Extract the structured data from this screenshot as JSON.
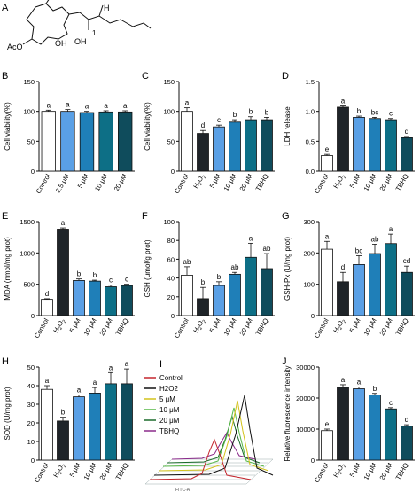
{
  "colors": {
    "control": "#ffffff",
    "h2o2": "#1f2429",
    "um5": "#5aa0e6",
    "um10": "#1f7fb8",
    "um20": "#0d6f86",
    "tbhq": "#0f4c5c",
    "inset_control": "#c4262e",
    "inset_h2o2": "#111111",
    "inset_5": "#d3c21b",
    "inset_10": "#57b847",
    "inset_20": "#1a6b2a",
    "inset_tbhq": "#8a2a8a"
  },
  "structure": {
    "label": "A",
    "acetoxy": "AcO",
    "oh1": "OH",
    "oh2": "OH",
    "h": "H",
    "number": "1"
  },
  "chart_data": [
    {
      "id": "B",
      "label": "B",
      "type": "bar",
      "ylabel": "Cell viability(%)",
      "ylim": [
        0,
        150
      ],
      "yticks": [
        0,
        50,
        100,
        150
      ],
      "categories": [
        "Control",
        "2.5 μM",
        "5 μM",
        "10 μM",
        "20 μM"
      ],
      "values": [
        100,
        100,
        98,
        99,
        99
      ],
      "errors": [
        2,
        3,
        2,
        2,
        2
      ],
      "letters": [
        "a",
        "a",
        "a",
        "a",
        "a"
      ],
      "colors": [
        "#ffffff",
        "#5aa0e6",
        "#1f7fb8",
        "#0d6f86",
        "#0f4c5c"
      ]
    },
    {
      "id": "C",
      "label": "C",
      "type": "bar",
      "ylabel": "Cell viability(%)",
      "ylim": [
        0,
        150
      ],
      "yticks": [
        0,
        50,
        100,
        150
      ],
      "categories": [
        "Control",
        "H2O2",
        "5 μM",
        "10 μM",
        "20 μM",
        "TBHQ"
      ],
      "values": [
        100,
        63,
        74,
        82,
        86,
        86
      ],
      "errors": [
        6,
        5,
        3,
        4,
        5,
        4
      ],
      "letters": [
        "a",
        "d",
        "c",
        "b",
        "b",
        "b"
      ],
      "colors": [
        "#ffffff",
        "#1f2429",
        "#5aa0e6",
        "#1f7fb8",
        "#0d6f86",
        "#0f4c5c"
      ]
    },
    {
      "id": "D",
      "label": "D",
      "type": "bar",
      "ylabel": "LDH release",
      "ylim": [
        0,
        1.5
      ],
      "yticks": [
        0.0,
        0.5,
        1.0,
        1.5
      ],
      "tickDecimals": 1,
      "categories": [
        "Control",
        "H2O2",
        "5 μM",
        "10 μM",
        "20 μM",
        "TBHQ"
      ],
      "values": [
        0.26,
        1.07,
        0.9,
        0.88,
        0.86,
        0.56
      ],
      "errors": [
        0.02,
        0.02,
        0.02,
        0.02,
        0.02,
        0.02
      ],
      "letters": [
        "e",
        "a",
        "b",
        "bc",
        "c",
        "d"
      ],
      "colors": [
        "#ffffff",
        "#1f2429",
        "#5aa0e6",
        "#1f7fb8",
        "#0d6f86",
        "#0f4c5c"
      ]
    },
    {
      "id": "E",
      "label": "E",
      "type": "bar",
      "ylabel": "MDA (nmol/mg prot)",
      "ylim": [
        0,
        1500
      ],
      "yticks": [
        0,
        500,
        1000,
        1500
      ],
      "categories": [
        "Control",
        "H2O2",
        "5 μM",
        "10 μM",
        "20 μM",
        "TBHQ"
      ],
      "values": [
        260,
        1380,
        560,
        550,
        460,
        480
      ],
      "errors": [
        10,
        20,
        25,
        15,
        25,
        20
      ],
      "letters": [
        "d",
        "a",
        "b",
        "b",
        "c",
        "c"
      ],
      "colors": [
        "#ffffff",
        "#1f2429",
        "#5aa0e6",
        "#1f7fb8",
        "#0d6f86",
        "#0f4c5c"
      ]
    },
    {
      "id": "F",
      "label": "F",
      "type": "bar",
      "ylabel": "GSH (μmol/g prot)",
      "ylim": [
        0,
        100
      ],
      "yticks": [
        0,
        20,
        40,
        60,
        80,
        100
      ],
      "categories": [
        "Control",
        "H2O2",
        "5 μM",
        "10 μM",
        "20 μM",
        "TBHQ"
      ],
      "values": [
        43,
        18,
        32,
        44,
        62,
        50
      ],
      "errors": [
        9,
        12,
        4,
        2,
        15,
        16
      ],
      "letters": [
        "ab",
        "b",
        "b",
        "ab",
        "a",
        "ab"
      ],
      "colors": [
        "#ffffff",
        "#1f2429",
        "#5aa0e6",
        "#1f7fb8",
        "#0d6f86",
        "#0f4c5c"
      ]
    },
    {
      "id": "G",
      "label": "G",
      "type": "bar",
      "ylabel": "GSH-Px (U/mg prot)",
      "ylim": [
        0,
        300
      ],
      "yticks": [
        0,
        100,
        200,
        300
      ],
      "categories": [
        "Control",
        "H2O2",
        "5 μM",
        "10 μM",
        "20 μM",
        "TBHQ"
      ],
      "values": [
        212,
        108,
        163,
        198,
        230,
        138
      ],
      "errors": [
        25,
        30,
        28,
        30,
        30,
        20
      ],
      "letters": [
        "a",
        "d",
        "bc",
        "ab",
        "a",
        "cd"
      ],
      "colors": [
        "#ffffff",
        "#1f2429",
        "#5aa0e6",
        "#1f7fb8",
        "#0d6f86",
        "#0f4c5c"
      ]
    },
    {
      "id": "H",
      "label": "H",
      "type": "bar",
      "ylabel": "SOD (U/mg prot)",
      "ylim": [
        0,
        50
      ],
      "yticks": [
        0,
        10,
        20,
        30,
        40,
        50
      ],
      "categories": [
        "Control",
        "H2O2",
        "5 μM",
        "10 μM",
        "20 μM",
        "TBHQ"
      ],
      "values": [
        38,
        21,
        34,
        36,
        41,
        41
      ],
      "errors": [
        2,
        2,
        1,
        3,
        6,
        8
      ],
      "letters": [
        "a",
        "b",
        "a",
        "a",
        "a",
        "a"
      ],
      "colors": [
        "#ffffff",
        "#1f2429",
        "#5aa0e6",
        "#1f7fb8",
        "#0d6f86",
        "#0f4c5c"
      ]
    },
    {
      "id": "J",
      "label": "J",
      "type": "bar",
      "ylabel": "Relative fluorescence intensity",
      "ylim": [
        0,
        30000
      ],
      "yticks": [
        0,
        10000,
        20000,
        30000
      ],
      "categories": [
        "Control",
        "H2O2",
        "5 μM",
        "10 μM",
        "20 μM",
        "TBHQ"
      ],
      "values": [
        9500,
        23500,
        23000,
        21000,
        16500,
        11000
      ],
      "errors": [
        500,
        800,
        600,
        500,
        400,
        400
      ],
      "letters": [
        "e",
        "a",
        "a",
        "b",
        "c",
        "d"
      ],
      "colors": [
        "#ffffff",
        "#1f2429",
        "#5aa0e6",
        "#1f7fb8",
        "#0d6f86",
        "#0f4c5c"
      ]
    }
  ],
  "inset": {
    "label": "I",
    "xlabel": "FITC-A",
    "legend": [
      "Control",
      "H2O2",
      "5 μM",
      "10 μM",
      "20 μM",
      "TBHQ"
    ]
  }
}
